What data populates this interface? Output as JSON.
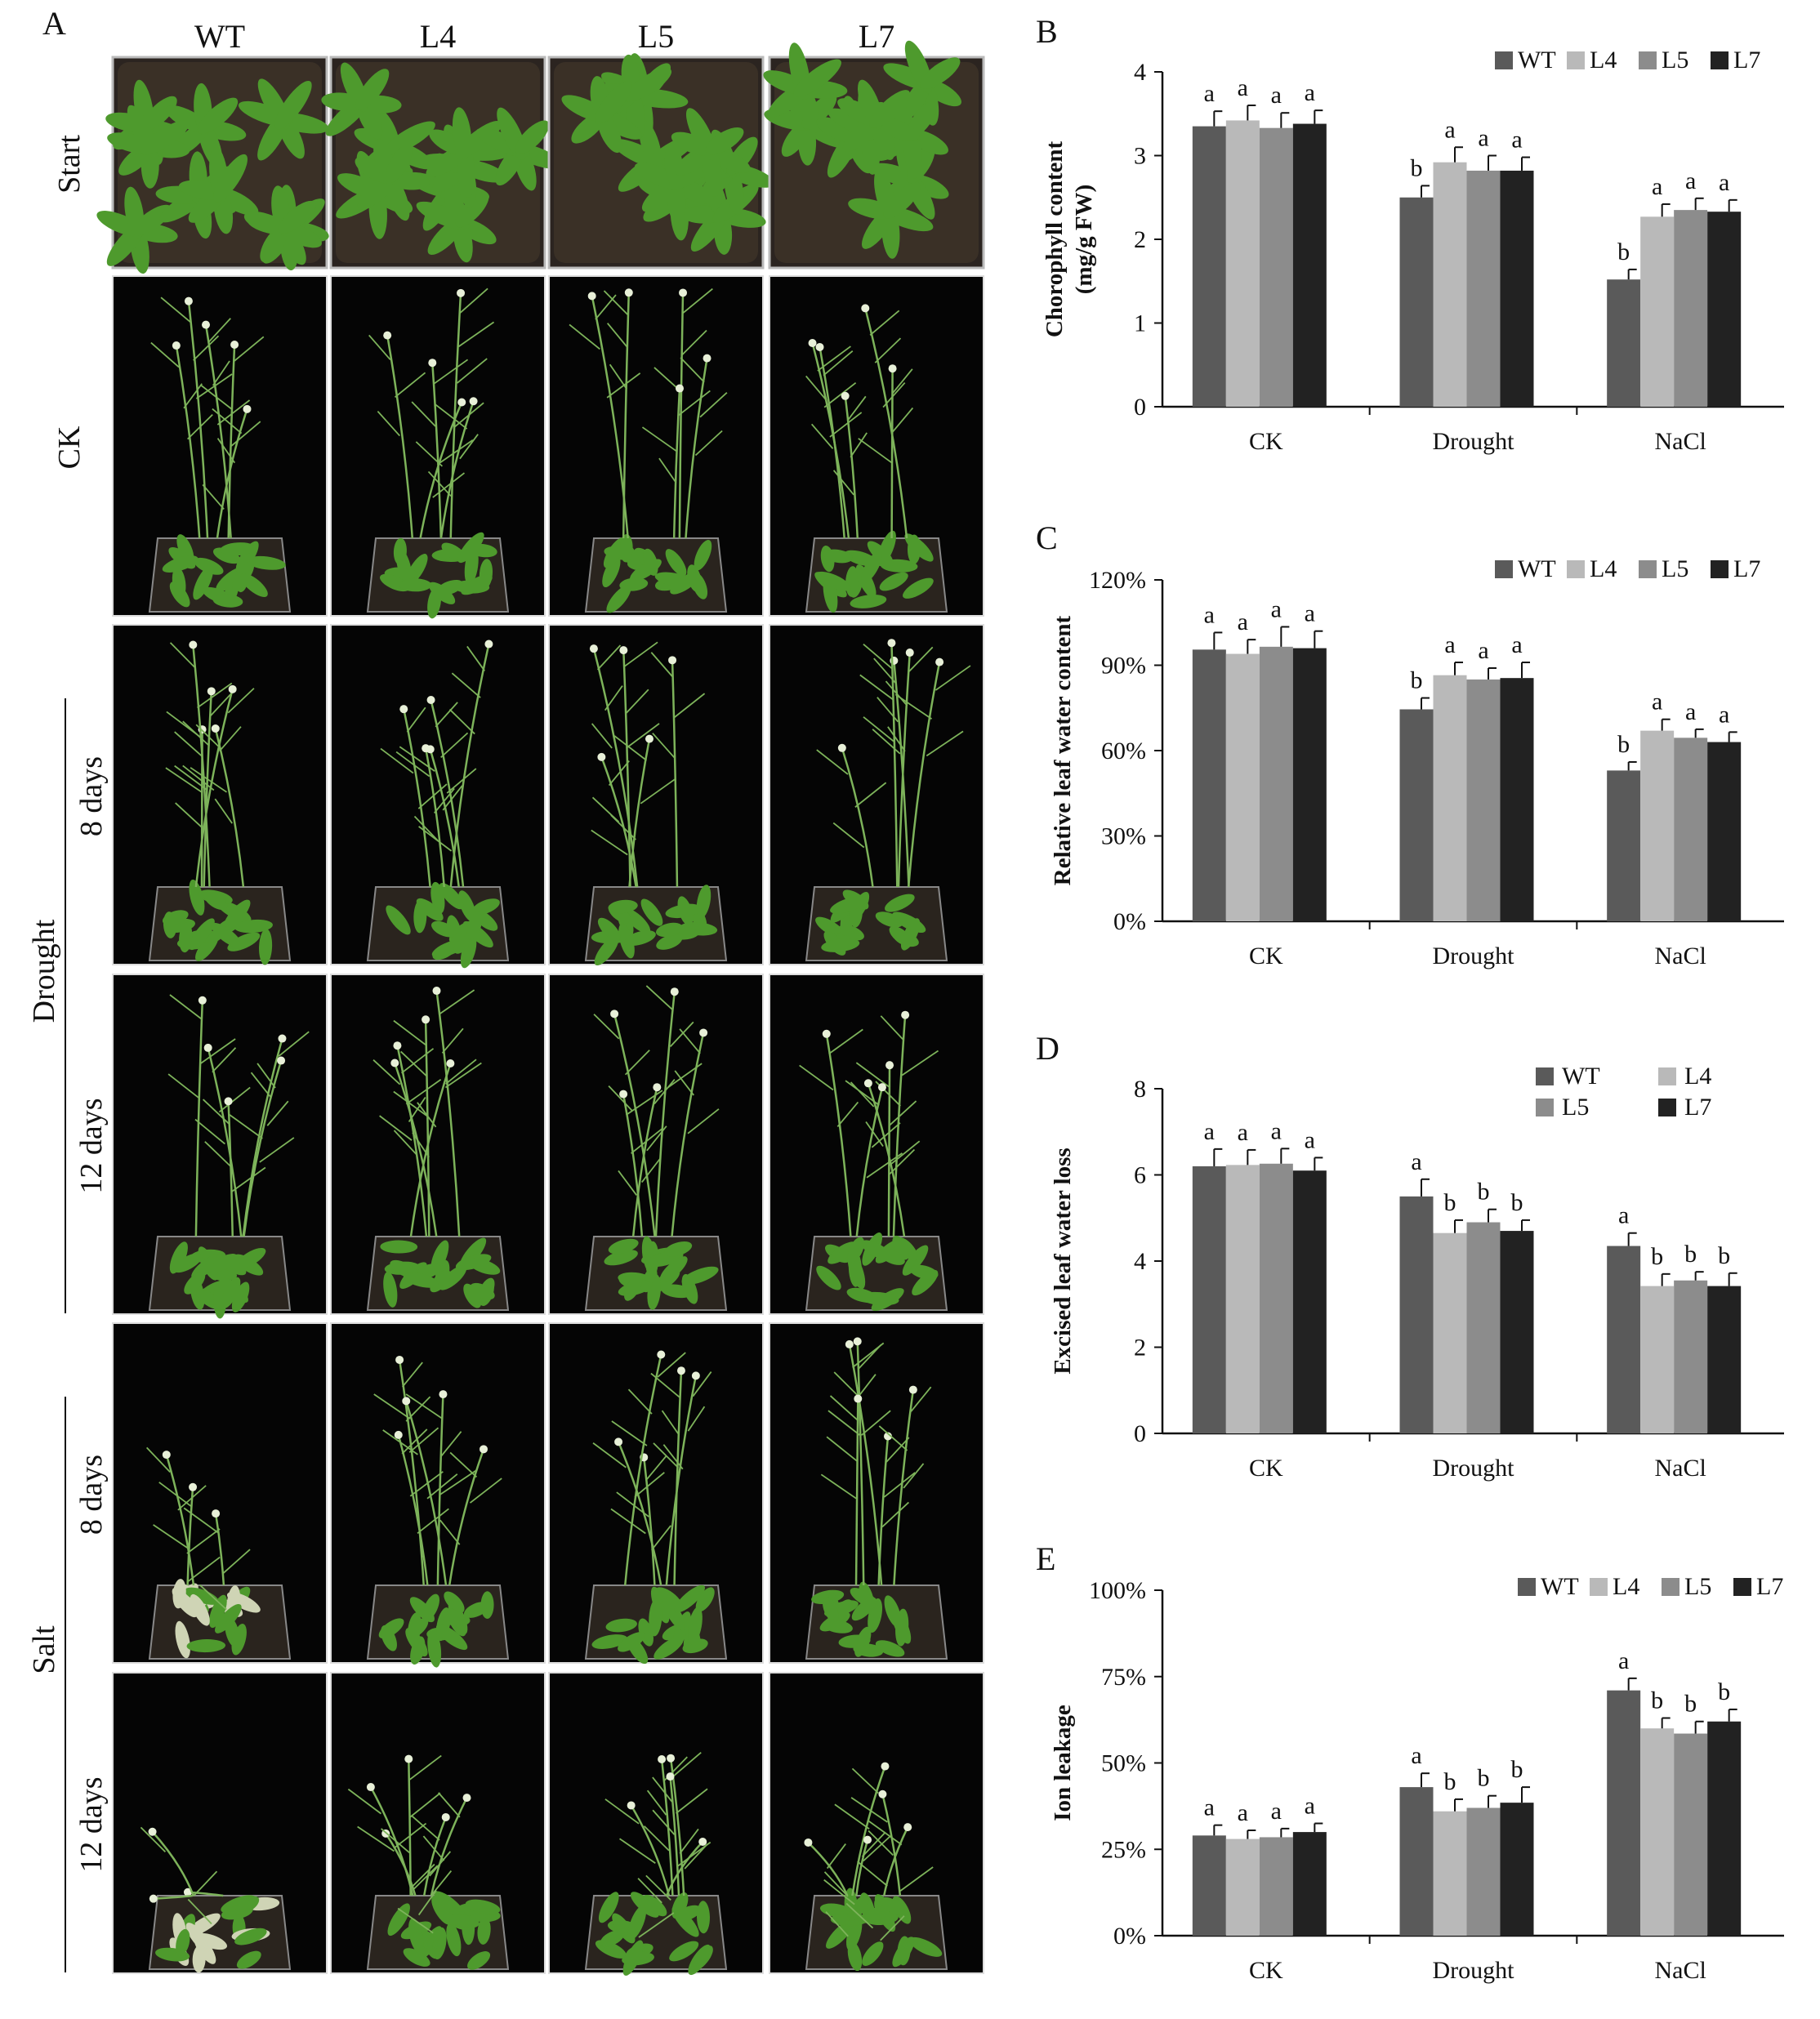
{
  "panel_a": {
    "label": "A",
    "columns": [
      "WT",
      "L4",
      "L5",
      "L7"
    ],
    "rows": [
      "Start",
      "CK",
      "8 days",
      "12 days",
      "8 days",
      "12 days"
    ],
    "groups": [
      {
        "label": "Drought"
      },
      {
        "label": "Salt"
      }
    ]
  },
  "colors": {
    "WT": "#5a5a5a",
    "L4": "#b9b9b9",
    "L5": "#8c8c8c",
    "L7": "#222222",
    "plant_bg": "#050505",
    "leaf": "#4e9a2d",
    "soil": "#3a3026"
  },
  "chart_data": [
    {
      "type": "bar",
      "panel": "B",
      "ylabel": "Chorophyll content",
      "ylabel2": "(mg/g FW)",
      "categories": [
        "CK",
        "Drought",
        "NaCl"
      ],
      "yticks": [
        "0",
        "1",
        "2",
        "3",
        "4"
      ],
      "ylim": [
        0,
        4
      ],
      "legend": "top-right",
      "series": [
        {
          "name": "WT",
          "values": [
            3.35,
            2.5,
            1.52
          ],
          "errors": [
            0.18,
            0.14,
            0.12
          ],
          "letters": [
            "a",
            "b",
            "b"
          ]
        },
        {
          "name": "L4",
          "values": [
            3.42,
            2.92,
            2.27
          ],
          "errors": [
            0.18,
            0.18,
            0.15
          ],
          "letters": [
            "a",
            "a",
            "a"
          ]
        },
        {
          "name": "L5",
          "values": [
            3.33,
            2.82,
            2.35
          ],
          "errors": [
            0.18,
            0.18,
            0.14
          ],
          "letters": [
            "a",
            "a",
            "a"
          ]
        },
        {
          "name": "L7",
          "values": [
            3.38,
            2.82,
            2.33
          ],
          "errors": [
            0.16,
            0.16,
            0.14
          ],
          "letters": [
            "a",
            "a",
            "a"
          ]
        }
      ]
    },
    {
      "type": "bar",
      "panel": "C",
      "ylabel": "Relative leaf water content",
      "categories": [
        "CK",
        "Drought",
        "NaCl"
      ],
      "yticks": [
        "0%",
        "30%",
        "60%",
        "90%",
        "120%"
      ],
      "ylim": [
        0,
        120
      ],
      "legend": "top-right",
      "series": [
        {
          "name": "WT",
          "values": [
            95.5,
            74.5,
            53
          ],
          "errors": [
            6,
            4,
            3
          ],
          "letters": [
            "a",
            "b",
            "b"
          ]
        },
        {
          "name": "L4",
          "values": [
            94,
            86.5,
            67
          ],
          "errors": [
            5,
            4.5,
            4
          ],
          "letters": [
            "a",
            "a",
            "a"
          ]
        },
        {
          "name": "L5",
          "values": [
            96.5,
            85,
            64.5
          ],
          "errors": [
            7,
            4,
            3
          ],
          "letters": [
            "a",
            "a",
            "a"
          ]
        },
        {
          "name": "L7",
          "values": [
            96,
            85.5,
            63
          ],
          "errors": [
            6,
            5.5,
            3.5
          ],
          "letters": [
            "a",
            "a",
            "a"
          ]
        }
      ]
    },
    {
      "type": "bar",
      "panel": "D",
      "ylabel": "Excised leaf water loss",
      "categories": [
        "CK",
        "Drought",
        "NaCl"
      ],
      "yticks": [
        "0",
        "2",
        "4",
        "6",
        "8"
      ],
      "ylim": [
        0,
        8
      ],
      "legend": "top-right-2x2",
      "series": [
        {
          "name": "WT",
          "values": [
            6.2,
            5.5,
            4.35
          ],
          "errors": [
            0.4,
            0.4,
            0.3
          ],
          "letters": [
            "a",
            "a",
            "a"
          ]
        },
        {
          "name": "L4",
          "values": [
            6.23,
            4.65,
            3.42
          ],
          "errors": [
            0.35,
            0.3,
            0.28
          ],
          "letters": [
            "a",
            "b",
            "b"
          ]
        },
        {
          "name": "L5",
          "values": [
            6.26,
            4.9,
            3.55
          ],
          "errors": [
            0.35,
            0.3,
            0.2
          ],
          "letters": [
            "a",
            "b",
            "b"
          ]
        },
        {
          "name": "L7",
          "values": [
            6.1,
            4.7,
            3.42
          ],
          "errors": [
            0.3,
            0.25,
            0.3
          ],
          "letters": [
            "a",
            "b",
            "b"
          ]
        }
      ]
    },
    {
      "type": "bar",
      "panel": "E",
      "ylabel": "Ion leakage",
      "categories": [
        "CK",
        "Drought",
        "NaCl"
      ],
      "yticks": [
        "0%",
        "25%",
        "50%",
        "75%",
        "100%"
      ],
      "ylim": [
        0,
        100
      ],
      "legend": "top-right",
      "series": [
        {
          "name": "WT",
          "values": [
            29,
            43,
            71
          ],
          "errors": [
            3,
            4,
            3.5
          ],
          "letters": [
            "a",
            "a",
            "a"
          ]
        },
        {
          "name": "L4",
          "values": [
            28,
            36,
            60
          ],
          "errors": [
            2.5,
            3.5,
            3
          ],
          "letters": [
            "a",
            "b",
            "b"
          ]
        },
        {
          "name": "L5",
          "values": [
            28.5,
            37,
            58.5
          ],
          "errors": [
            2.5,
            3.5,
            3.5
          ],
          "letters": [
            "a",
            "b",
            "b"
          ]
        },
        {
          "name": "L7",
          "values": [
            30,
            38.5,
            62
          ],
          "errors": [
            2.5,
            4.5,
            3.5
          ],
          "letters": [
            "a",
            "b",
            "b"
          ]
        }
      ]
    }
  ]
}
